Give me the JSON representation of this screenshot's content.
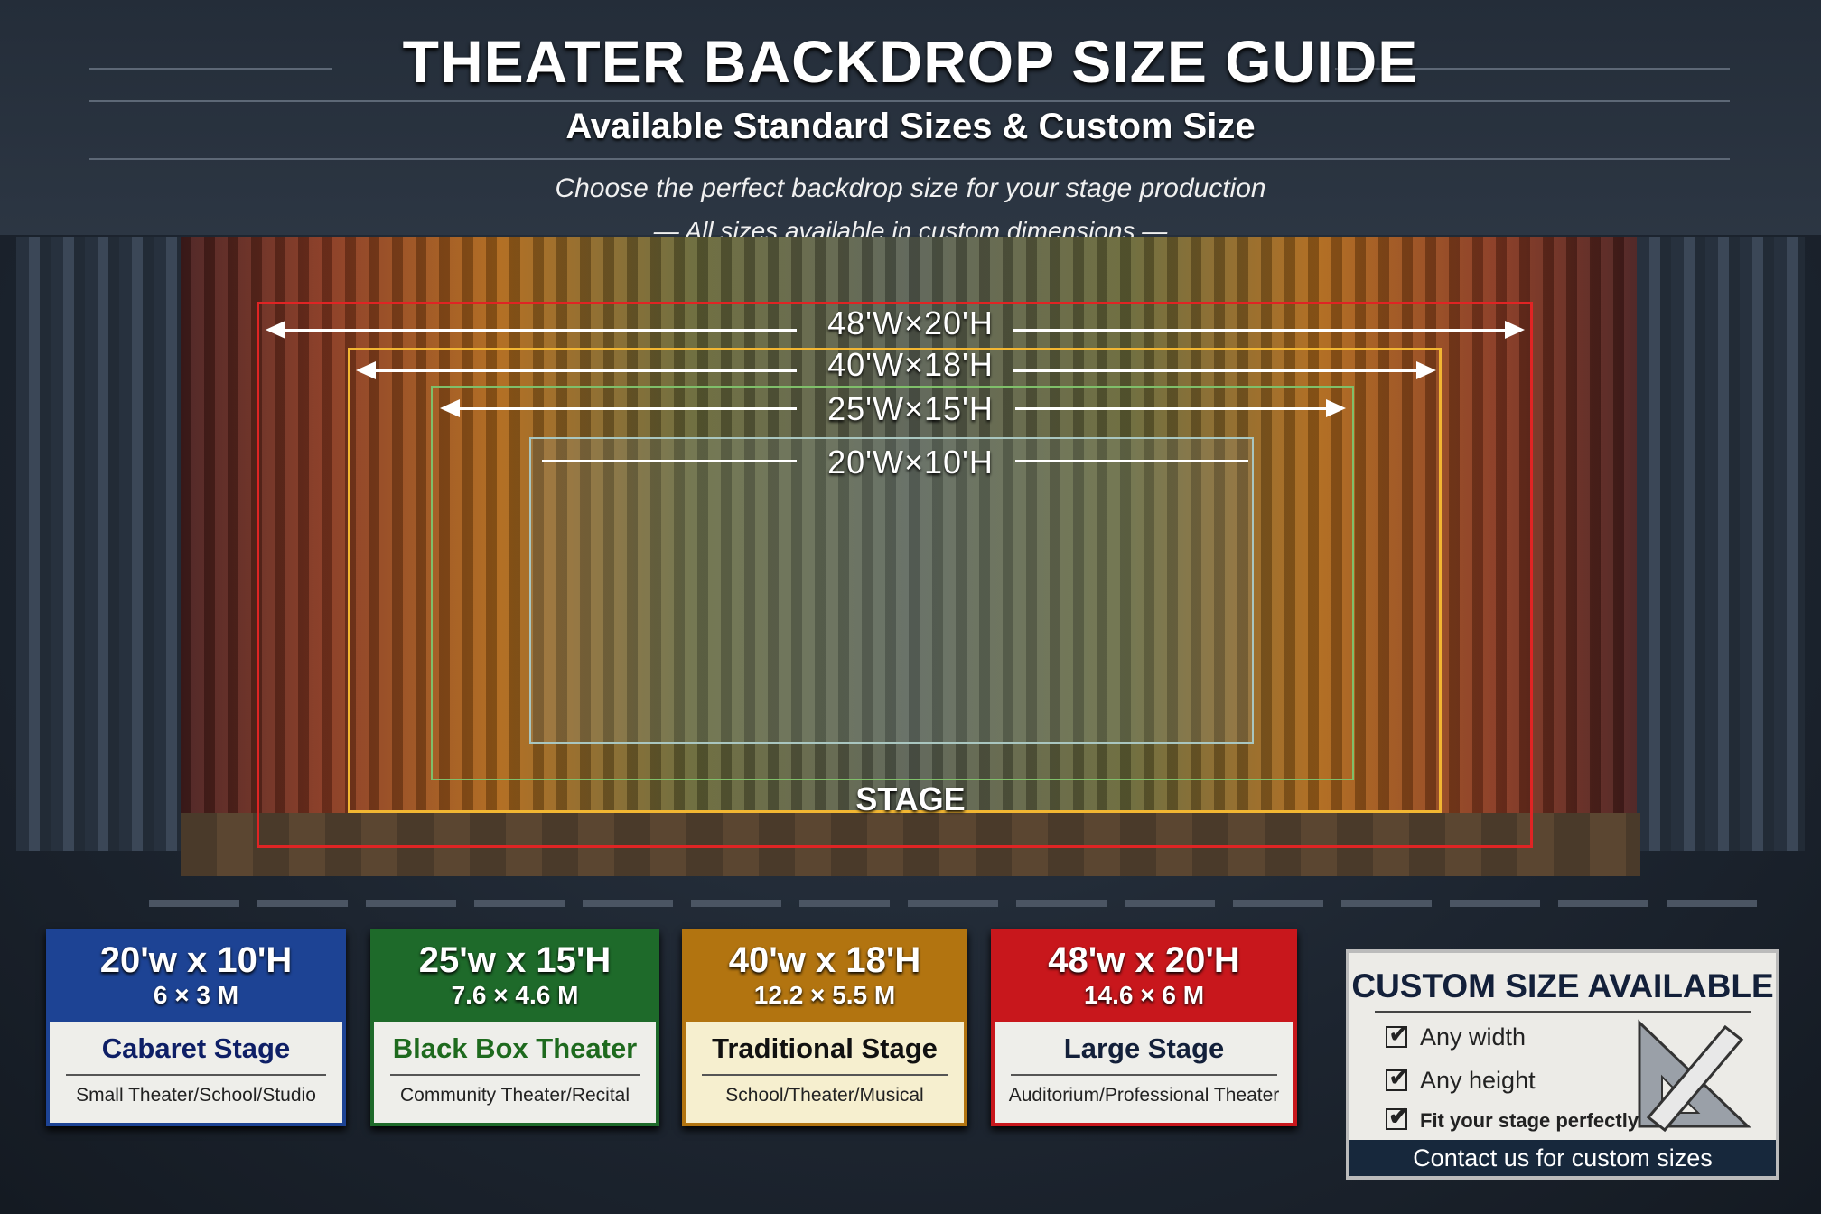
{
  "header": {
    "title": "THEATER BACKDROP SIZE GUIDE",
    "subtitle": "Available Standard Sizes & Custom Size",
    "tagline1": "Choose the perfect backdrop size for your stage production",
    "tagline2": "All sizes available in custom dimensions"
  },
  "diagram": {
    "stage_label": "STAGE",
    "sizes": [
      {
        "label": "48'W×20'H",
        "color": "#e02424"
      },
      {
        "label": "40'W×18'H",
        "color": "#f2b632"
      },
      {
        "label": "25'W×15'H",
        "color": "#7fbf6a"
      },
      {
        "label": "20'W×10'H",
        "color": "#a9c6c0"
      }
    ]
  },
  "cards": [
    {
      "size": "20'w x 10'H",
      "metric": "6 × 3 M",
      "name": "Cabaret Stage",
      "use": "Small Theater/School/Studio",
      "color": "#1d4394",
      "name_color": "#0e1f66"
    },
    {
      "size": "25'w x 15'H",
      "metric": "7.6 × 4.6 M",
      "name": "Black Box Theater",
      "use": "Community Theater/Recital",
      "color": "#1e6a2a",
      "name_color": "#1e6a1e"
    },
    {
      "size": "40'w x 18'H",
      "metric": "12.2 × 5.5 M",
      "name": "Traditional Stage",
      "use": "School/Theater/Musical",
      "color": "#b27410",
      "name_color": "#111111"
    },
    {
      "size": "48'w x 20'H",
      "metric": "14.6 × 6 M",
      "name": "Large Stage",
      "use": "Auditorium/Professional Theater",
      "color": "#c8171c",
      "name_color": "#13203a"
    }
  ],
  "custom": {
    "title": "CUSTOM SIZE AVAILABLE",
    "items": [
      "Any width",
      "Any height",
      "Fit your stage perfectly"
    ],
    "contact": "Contact us for custom sizes",
    "icon": "ruler-triangle-icon"
  }
}
